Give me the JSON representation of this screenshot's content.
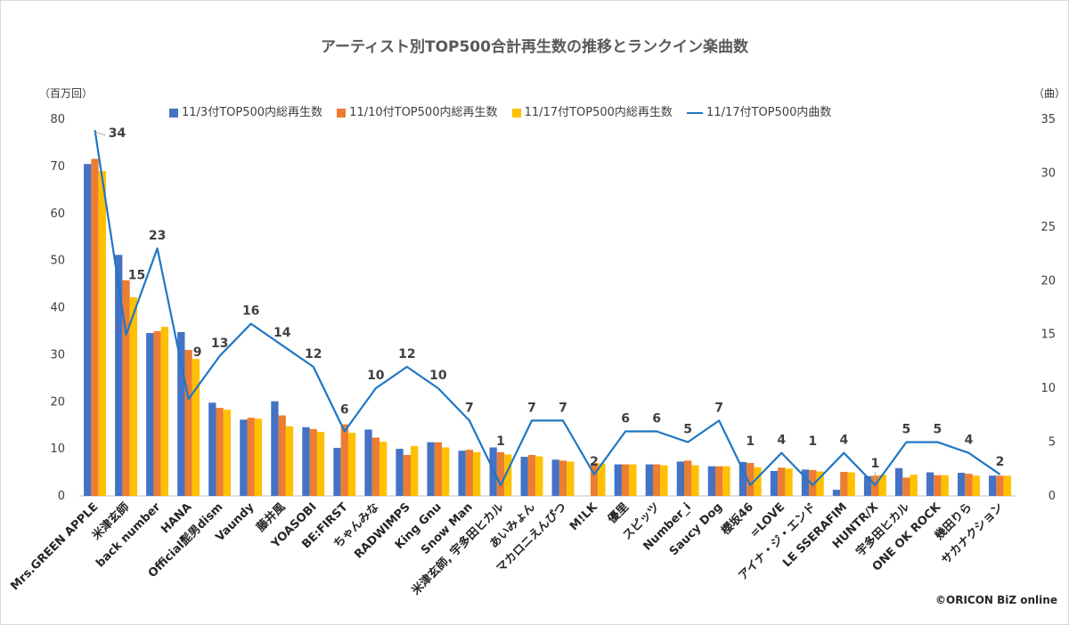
{
  "chart_data": {
    "type": "bar",
    "title": "アーティスト別TOP500合計再生数の推移とランクイン楽曲数",
    "ylabel": "（百万回）",
    "y2label": "（曲）",
    "ylim": [
      0,
      80
    ],
    "y2lim": [
      0,
      35
    ],
    "yticks": [
      0,
      10,
      20,
      30,
      40,
      50,
      60,
      70,
      80
    ],
    "y2ticks": [
      0,
      5,
      10,
      15,
      20,
      25,
      30,
      35
    ],
    "grid": false,
    "legend_position": "top",
    "categories": [
      "Mrs.GREEN APPLE",
      "米津玄師",
      "back number",
      "HANA",
      "Official髭男dism",
      "Vaundy",
      "藤井風",
      "YOASOBI",
      "BE:FIRST",
      "ちゃんみな",
      "RADWIMPS",
      "King Gnu",
      "Snow Man",
      "米津玄師, 宇多田ヒカル",
      "あいみょん",
      "マカロニえんぴつ",
      "M!LK",
      "優里",
      "スピッツ",
      "Number_i",
      "Saucy Dog",
      "櫻坂46",
      "=LOVE",
      "アイナ・ジ・エンド",
      "LE SSERAFIM",
      "HUNTR/X",
      "宇多田ヒカル",
      "ONE OK ROCK",
      "幾田りら",
      "サカナクション"
    ],
    "series": [
      {
        "name": "11/3付TOP500内総再生数",
        "color": "#4472c4",
        "axis": "left",
        "values": [
          70.5,
          51.2,
          34.6,
          34.8,
          19.8,
          16.2,
          20.1,
          14.6,
          10.2,
          14.1,
          10.0,
          11.4,
          9.6,
          10.3,
          8.3,
          7.7,
          0,
          6.7,
          6.7,
          7.3,
          6.3,
          7.2,
          5.3,
          5.6,
          1.3,
          4.2,
          5.9,
          5.0,
          4.9,
          4.3
        ]
      },
      {
        "name": "11/10付TOP500内総再生数",
        "color": "#ed7d31",
        "axis": "left",
        "values": [
          71.6,
          45.8,
          35.0,
          31.0,
          18.7,
          16.6,
          17.1,
          14.2,
          15.2,
          12.4,
          8.7,
          11.4,
          9.8,
          9.3,
          8.7,
          7.5,
          7.0,
          6.7,
          6.7,
          7.5,
          6.3,
          7.0,
          6.0,
          5.5,
          5.1,
          4.3,
          3.9,
          4.4,
          4.7,
          4.3
        ]
      },
      {
        "name": "11/17付TOP500内総再生数",
        "color": "#ffc000",
        "axis": "left",
        "values": [
          69.0,
          42.2,
          35.9,
          29.1,
          18.3,
          16.4,
          14.8,
          13.6,
          13.4,
          11.5,
          10.6,
          10.3,
          9.3,
          8.8,
          8.4,
          7.3,
          6.9,
          6.7,
          6.5,
          6.5,
          6.3,
          6.1,
          5.8,
          5.2,
          5.0,
          4.5,
          4.5,
          4.4,
          4.3,
          4.3
        ]
      },
      {
        "name": "11/17付TOP500内曲数",
        "color": "#1f77c4",
        "axis": "right",
        "type": "line",
        "values": [
          34,
          15,
          23,
          9,
          13,
          16,
          14,
          12,
          6,
          10,
          12,
          10,
          7,
          1,
          7,
          7,
          2,
          6,
          6,
          5,
          7,
          1,
          4,
          1,
          4,
          1,
          5,
          5,
          4,
          2
        ]
      }
    ]
  },
  "credit": "©ORICON BiZ online"
}
